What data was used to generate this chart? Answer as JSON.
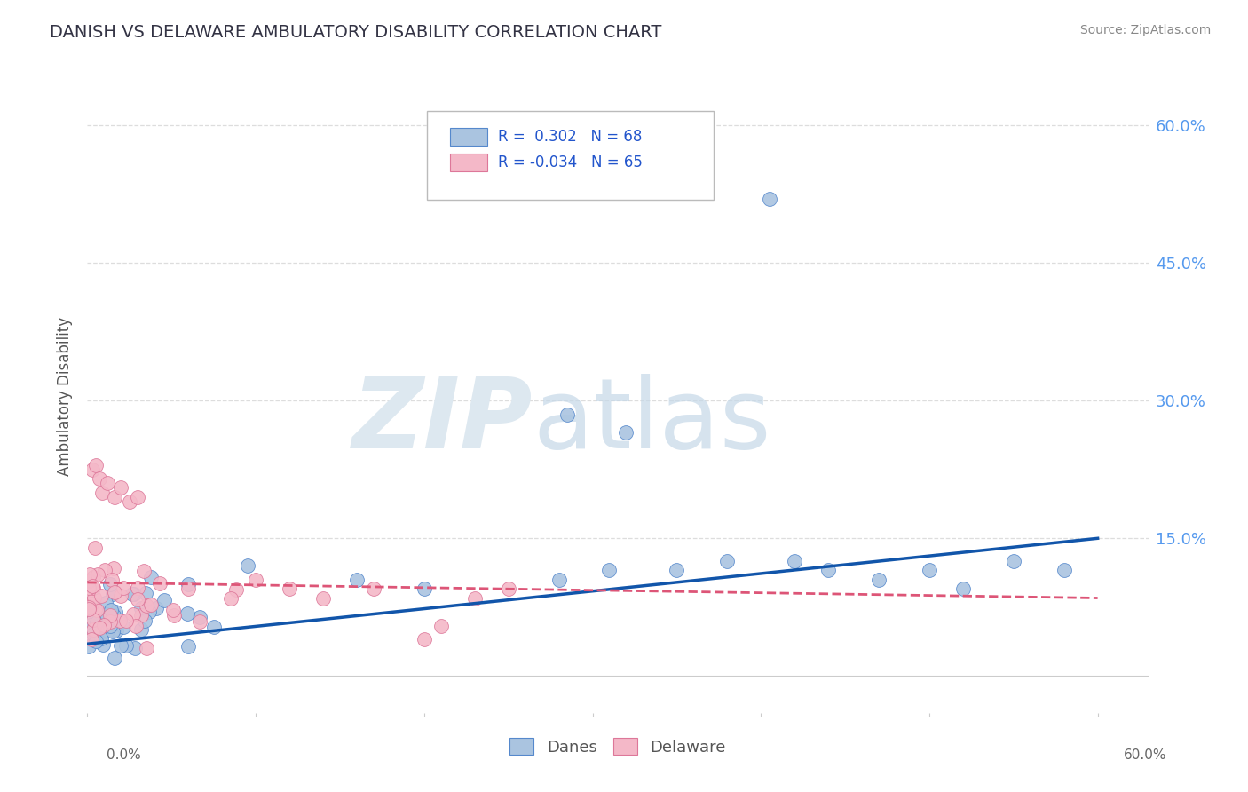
{
  "title": "DANISH VS DELAWARE AMBULATORY DISABILITY CORRELATION CHART",
  "source": "Source: ZipAtlas.com",
  "ylabel": "Ambulatory Disability",
  "xlim": [
    0.0,
    0.63
  ],
  "ylim": [
    -0.04,
    0.65
  ],
  "danes_R": 0.302,
  "danes_N": 68,
  "delaware_R": -0.034,
  "delaware_N": 65,
  "danes_color": "#aac4e0",
  "danes_edge_color": "#5588cc",
  "danes_line_color": "#1155aa",
  "delaware_color": "#f4b8c8",
  "delaware_edge_color": "#dd7799",
  "delaware_line_color": "#dd5577",
  "background_color": "#ffffff",
  "ytick_vals": [
    0.0,
    0.15,
    0.3,
    0.45,
    0.6
  ],
  "ytick_labels": [
    "",
    "15.0%",
    "30.0%",
    "45.0%",
    "60.0%"
  ],
  "grid_color": "#dddddd",
  "title_color": "#333344",
  "source_color": "#888888",
  "ylabel_color": "#555555",
  "tick_color": "#5599ee",
  "danes_line_start": 0.035,
  "danes_line_end": 0.15,
  "delaware_line_start": 0.102,
  "delaware_line_end": 0.085
}
